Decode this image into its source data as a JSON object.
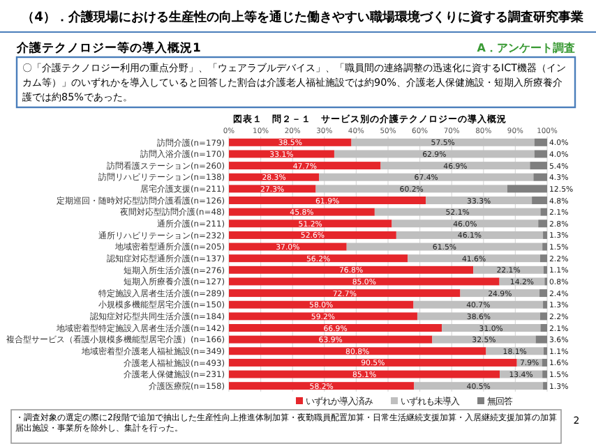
{
  "chart_data": {
    "type": "bar",
    "orientation": "horizontal",
    "stacked": true,
    "title": "（4）．介護現場における生産性の向上等を通じた働きやすい職場環境づくりに資する調査研究事業",
    "subtitle": "介護テクノロジー等の導入概況1",
    "annotations": [
      "A．アンケート調査",
      "〇「介護テクノロジー利用の重点分野」、「ウェアラブルデバイス」、「職員間の連絡調整の迅速化に資するICT機器（インカム等）」のいずれかを導入していると回答した割合は介護老人福祉施設では約90%、介護老人保健施設・短期入所療養介護では約85%であった。",
      "図表１　問２－１　サービス別の介護テクノロジーの導入概況",
      "・調査対象の選定の際に2段階で追加で抽出した生産性向上推進体制加算・夜勤職員配置加算・日常生活継続支援加算・入居継続支援加算の加算届出施設・事業所を除外し、集計を行った。",
      "2"
    ],
    "categories": [
      "訪問介護(n=179)",
      "訪問入浴介護(n=170)",
      "訪問看護ステーション(n=260)",
      "訪問リハビリテーション(n=138)",
      "居宅介護支援(n=211)",
      "定期巡回・随時対応型訪問介護看護(n=126)",
      "夜間対応型訪問介護(n=48)",
      "通所介護(n=211)",
      "通所リハビリテーション(n=232)",
      "地域密着型通所介護(n=205)",
      "認知症対応型通所介護(n=137)",
      "短期入所生活介護(n=276)",
      "短期入所療養介護(n=127)",
      "特定施設入居者生活介護(n=289)",
      "小規模多機能型居宅介護(n=150)",
      "認知症対応型共同生活介護(n=184)",
      "地域密着型特定施設入居者生活介護(n=142)",
      "複合型サービス（看護小規模多機能型居宅介護）(n=166)",
      "地域密着型介護老人福祉施設(n=349)",
      "介護老人福祉施設(n=493)",
      "介護老人保健施設(n=231)",
      "介護医療院(n=158)"
    ],
    "series": [
      {
        "name": "いずれか導入済み",
        "color": "#e5262b",
        "values": [
          38.5,
          33.1,
          47.7,
          28.3,
          27.3,
          61.9,
          45.8,
          51.2,
          52.6,
          37.0,
          56.2,
          76.8,
          85.0,
          72.7,
          58.0,
          59.2,
          66.9,
          63.9,
          80.8,
          90.5,
          85.1,
          58.2
        ],
        "value_labels": [
          "38.5%",
          "33.1%",
          "47.7%",
          "28.3%",
          "27.3%",
          "61.9%",
          "45.8%",
          "51.2%",
          "52.6%",
          "37.0%",
          "56.2%",
          "76.8%",
          "85.0%",
          "72.7%",
          "58.0%",
          "59.2%",
          "66.9%",
          "63.9%",
          "80.8%",
          "90.5%",
          "85.1%",
          "58.2%"
        ]
      },
      {
        "name": "いずれも未導入",
        "color": "#bfbfbf",
        "values": [
          57.5,
          62.9,
          46.9,
          67.4,
          60.2,
          33.3,
          52.1,
          46.0,
          46.1,
          61.5,
          41.6,
          22.1,
          14.2,
          24.9,
          40.7,
          38.6,
          31.0,
          32.5,
          18.1,
          7.9,
          13.4,
          40.5
        ],
        "value_labels": [
          "57.5%",
          "62.9%",
          "46.9%",
          "67.4%",
          "60.2%",
          "33.3%",
          "52.1%",
          "46.0%",
          "46.1%",
          "61.5%",
          "41.6%",
          "22.1%",
          "14.2%",
          "24.9%",
          "40.7%",
          "38.6%",
          "31.0%",
          "32.5%",
          "18.1%",
          "7.9%",
          "13.4%",
          "40.5%"
        ]
      },
      {
        "name": "無回答",
        "color": "#7f7f7f",
        "values": [
          4.0,
          4.0,
          5.4,
          4.3,
          12.5,
          4.8,
          2.1,
          2.8,
          1.3,
          1.5,
          2.2,
          1.1,
          0.8,
          2.4,
          1.3,
          2.2,
          2.1,
          3.6,
          1.1,
          1.6,
          1.5,
          1.3
        ],
        "value_labels": [
          "4.0%",
          "4.0%",
          "5.4%",
          "4.3%",
          "12.5%",
          "4.8%",
          "2.1%",
          "2.8%",
          "1.3%",
          "1.5%",
          "2.2%",
          "1.1%",
          "0.8%",
          "2.4%",
          "1.3%",
          "2.2%",
          "2.1%",
          "3.6%",
          "1.1%",
          "1.6%",
          "1.5%",
          "1.3%"
        ]
      }
    ],
    "xlim": [
      0,
      100
    ],
    "xticks": [
      {
        "value": 0,
        "label": "0%"
      },
      {
        "value": 10,
        "label": "10%"
      },
      {
        "value": 20,
        "label": "20%"
      },
      {
        "value": 30,
        "label": "30%"
      },
      {
        "value": 40,
        "label": "40%"
      },
      {
        "value": 50,
        "label": "50%"
      },
      {
        "value": 60,
        "label": "60%"
      },
      {
        "value": 70,
        "label": "70%"
      },
      {
        "value": 80,
        "label": "80%"
      },
      {
        "value": 90,
        "label": "90%"
      },
      {
        "value": 100,
        "label": "100%"
      }
    ],
    "grid": "x",
    "legend": "bottom"
  }
}
